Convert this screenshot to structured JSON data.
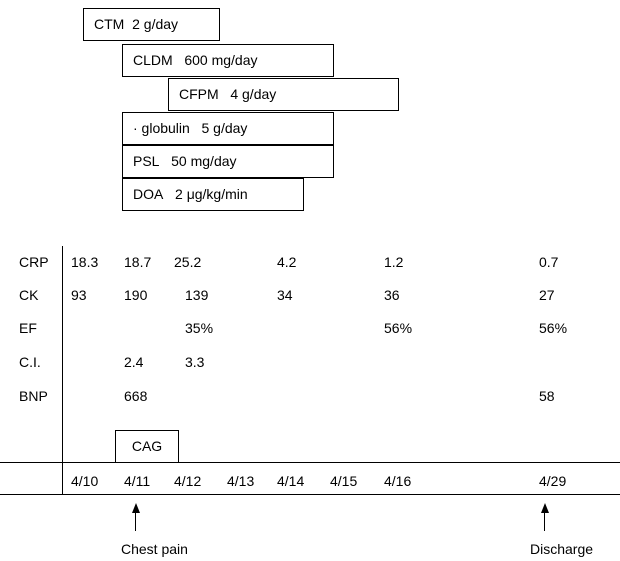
{
  "drugs": [
    {
      "name": "CTM",
      "dose": "2 g/day"
    },
    {
      "name": "CLDM",
      "dose": "600 mg/day"
    },
    {
      "name": "CFPM",
      "dose": "4 g/day"
    },
    {
      "name": "· globulin",
      "dose": "5 g/day"
    },
    {
      "name": "PSL",
      "dose": "50 mg/day"
    },
    {
      "name": "DOA",
      "dose": "2 μg/kg/min"
    }
  ],
  "rows": {
    "crp": {
      "label": "CRP",
      "values": [
        "18.3",
        "18.7",
        "25.2",
        "4.2",
        "1.2",
        "0.7"
      ]
    },
    "ck": {
      "label": "CK",
      "values": [
        "93",
        "190",
        "139",
        "34",
        "36",
        "27"
      ]
    },
    "ef": {
      "label": "EF",
      "values": [
        "35%",
        "56%",
        "56%"
      ]
    },
    "ci": {
      "label": "C.I.",
      "values": [
        "2.4",
        "3.3"
      ]
    },
    "bnp": {
      "label": "BNP",
      "values": [
        "668",
        "58"
      ]
    }
  },
  "procedure": "CAG",
  "dates": [
    "4/10",
    "4/11",
    "4/12",
    "4/13",
    "4/14",
    "4/15",
    "4/16",
    "4/29"
  ],
  "events": {
    "chest_pain": "Chest pain",
    "discharge": "Discharge"
  }
}
